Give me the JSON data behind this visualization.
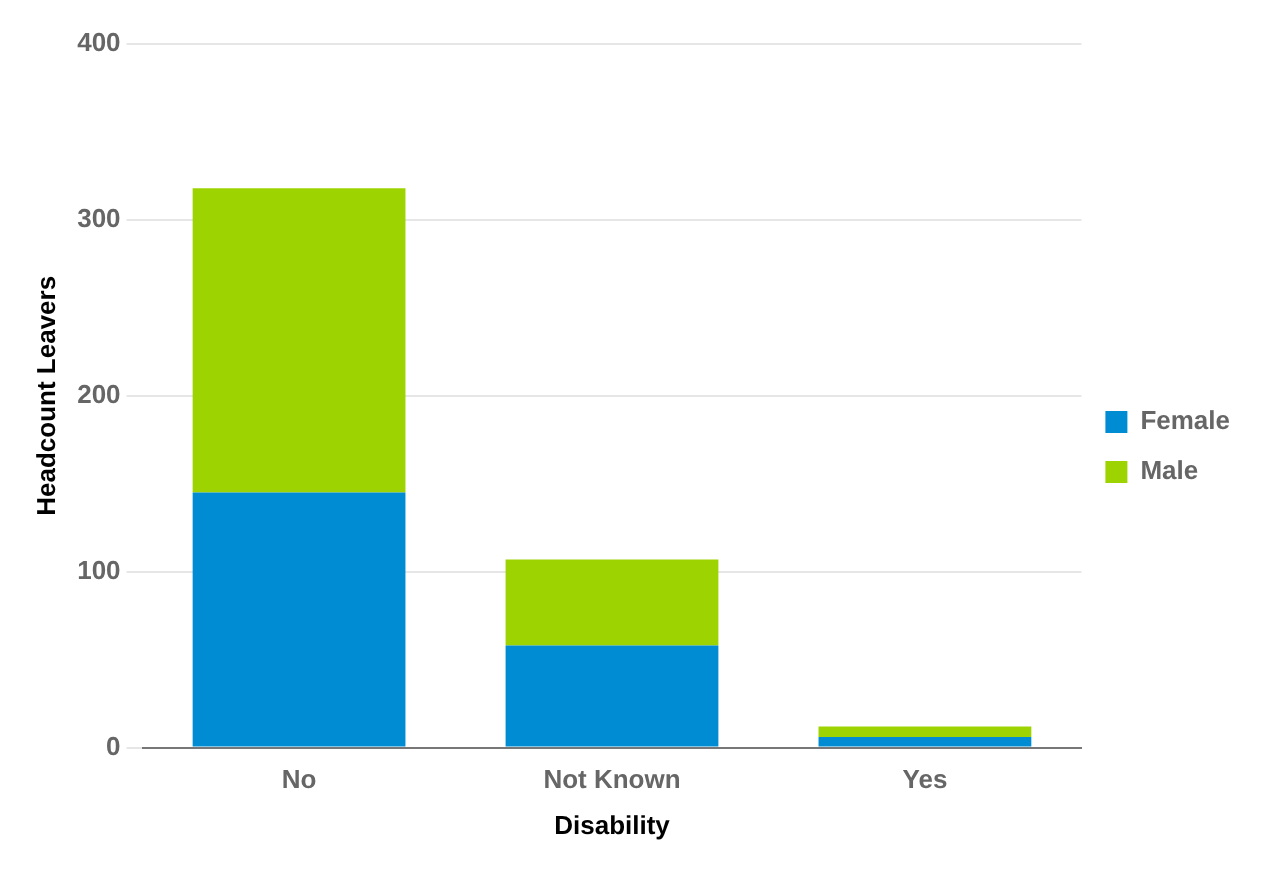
{
  "chart_data": {
    "type": "bar",
    "xlabel": "Disability",
    "ylabel": "Headcount Leavers",
    "categories": [
      "No",
      "Not Known",
      "Yes"
    ],
    "series": [
      {
        "name": "Female",
        "color": "#008cd2",
        "values": [
          145,
          58,
          6
        ]
      },
      {
        "name": "Male",
        "color": "#9dd300",
        "values": [
          173,
          49,
          6
        ]
      }
    ],
    "stacked": true,
    "ylim": [
      0,
      400
    ],
    "yticks": [
      0,
      100,
      200,
      300,
      400
    ],
    "grid": "y",
    "legend": "right"
  }
}
